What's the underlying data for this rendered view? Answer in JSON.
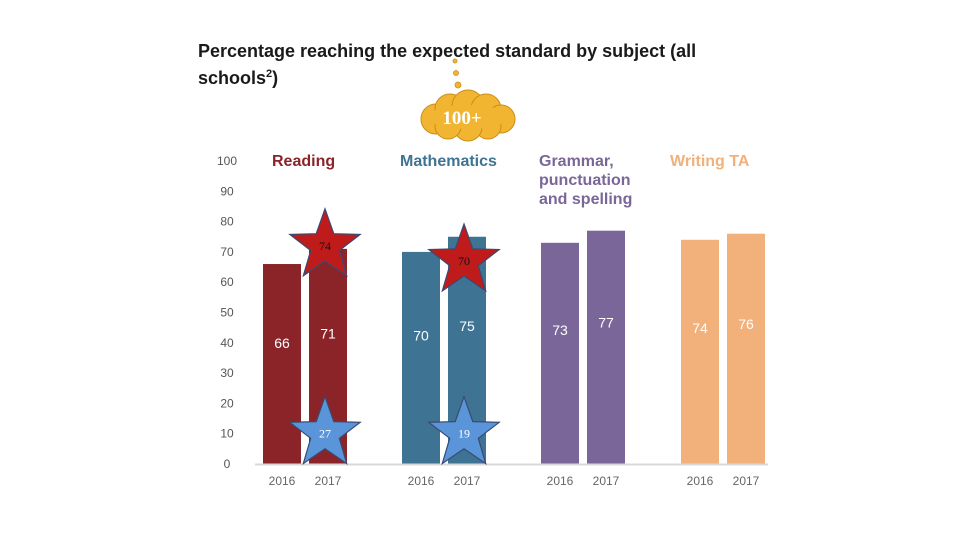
{
  "title": {
    "main": "Percentage reaching the expected standard by subject (all schools",
    "sup": "2",
    "end": ")"
  },
  "callout": {
    "text": "100+",
    "color": "#f2b531"
  },
  "chart_data": {
    "type": "bar",
    "title": "Percentage reaching the expected standard by subject (all schools2)",
    "ylim": [
      0,
      100
    ],
    "yticks": [
      0,
      10,
      20,
      30,
      40,
      50,
      60,
      70,
      80,
      90,
      100
    ],
    "grid": false,
    "groups": [
      {
        "subject": [
          "Reading"
        ],
        "color": "#8b2429",
        "label_color": "#ffffff",
        "categories": [
          "2016",
          "2017"
        ],
        "values": [
          66,
          71
        ],
        "labels": [
          "66",
          "71"
        ]
      },
      {
        "subject": [
          "Mathematics"
        ],
        "color": "#3f7393",
        "label_color": "#ffffff",
        "categories": [
          "2016",
          "2017"
        ],
        "values": [
          70,
          75
        ],
        "labels": [
          "70",
          "75"
        ]
      },
      {
        "subject": [
          "Grammar,",
          "punctuation",
          "and spelling"
        ],
        "color": "#7a6699",
        "label_color": "#ffffff",
        "categories": [
          "2016",
          "2017"
        ],
        "values": [
          73,
          77
        ],
        "labels": [
          "73",
          "77"
        ]
      },
      {
        "subject": [
          "Writing TA"
        ],
        "color": "#f2b07a",
        "label_color": "#ffffff",
        "categories": [
          "2016",
          "2017"
        ],
        "values": [
          74,
          76
        ],
        "labels": [
          "74",
          "76"
        ]
      }
    ],
    "annotations": [
      {
        "type": "star",
        "text": "74",
        "fill": "#c01b1b",
        "text_color": "#111111",
        "group": 0,
        "bar": 1,
        "level": 72
      },
      {
        "type": "star",
        "text": "70",
        "fill": "#c01b1b",
        "text_color": "#111111",
        "group": 1,
        "bar": 1,
        "level": 67
      },
      {
        "type": "star",
        "text": "27",
        "fill": "#5a95d9",
        "text_color": "#ffffff",
        "group": 0,
        "bar": 1,
        "level": 10
      },
      {
        "type": "star",
        "text": "19",
        "fill": "#5a95d9",
        "text_color": "#ffffff",
        "group": 1,
        "bar": 1,
        "level": 10
      }
    ]
  }
}
